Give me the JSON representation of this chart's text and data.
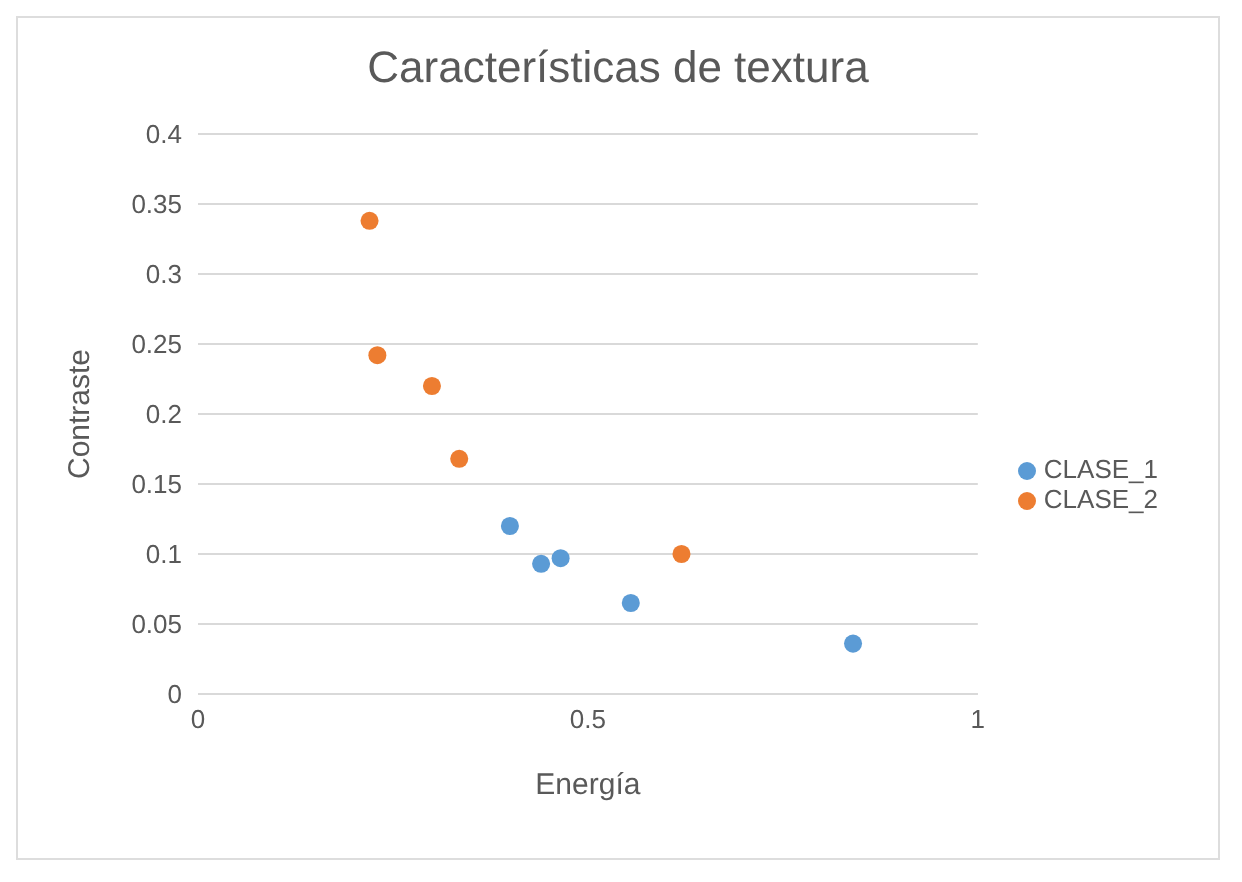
{
  "chart_data": {
    "type": "scatter",
    "title": "Características de textura",
    "xlabel": "Energía",
    "ylabel": "Contraste",
    "series": [
      {
        "name": "CLASE_1",
        "color": "#5b9bd5",
        "x": [
          0.4,
          0.44,
          0.465,
          0.555,
          0.84
        ],
        "values": [
          0.12,
          0.093,
          0.097,
          0.065,
          0.036
        ]
      },
      {
        "name": "CLASE_2",
        "color": "#ed7d31",
        "x": [
          0.22,
          0.23,
          0.3,
          0.335,
          0.62
        ],
        "values": [
          0.338,
          0.242,
          0.22,
          0.168,
          0.1
        ]
      }
    ],
    "xlim": [
      0,
      1
    ],
    "xticks": [
      0,
      0.5,
      1
    ],
    "ylim": [
      0,
      0.4
    ],
    "yticks": [
      0,
      0.05,
      0.1,
      0.15,
      0.2,
      0.25,
      0.3,
      0.35,
      0.4
    ],
    "grid": "y",
    "legend": "right",
    "marker": "circle"
  }
}
